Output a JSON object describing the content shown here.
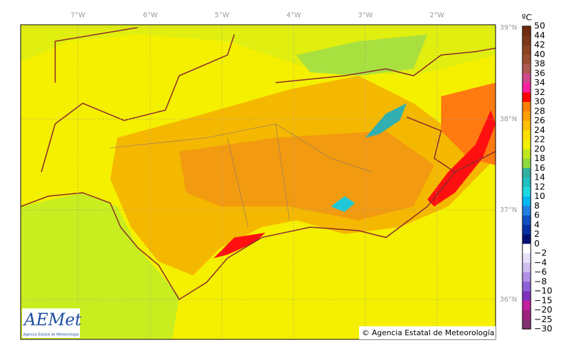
{
  "map": {
    "longitude_labels": [
      "7°W",
      "6°W",
      "5°W",
      "4°W",
      "3°W",
      "2°W"
    ],
    "latitude_labels": [
      "39°N",
      "38°N",
      "37°N",
      "36°N"
    ],
    "colorbar": {
      "unit": "ºC",
      "labels": [
        "50",
        "44",
        "42",
        "40",
        "38",
        "36",
        "34",
        "32",
        "30",
        "28",
        "26",
        "24",
        "22",
        "20",
        "18",
        "16",
        "14",
        "12",
        "10",
        "8",
        "6",
        "4",
        "2",
        "0",
        "−2",
        "−4",
        "−6",
        "−8",
        "−10",
        "−15",
        "−20",
        "−25",
        "−30"
      ]
    },
    "copyright": "© Agencia Estatal de Meteorología",
    "logo": {
      "name": "AEMet",
      "subtitle": "Agencia Estatal de Meteorología"
    }
  }
}
